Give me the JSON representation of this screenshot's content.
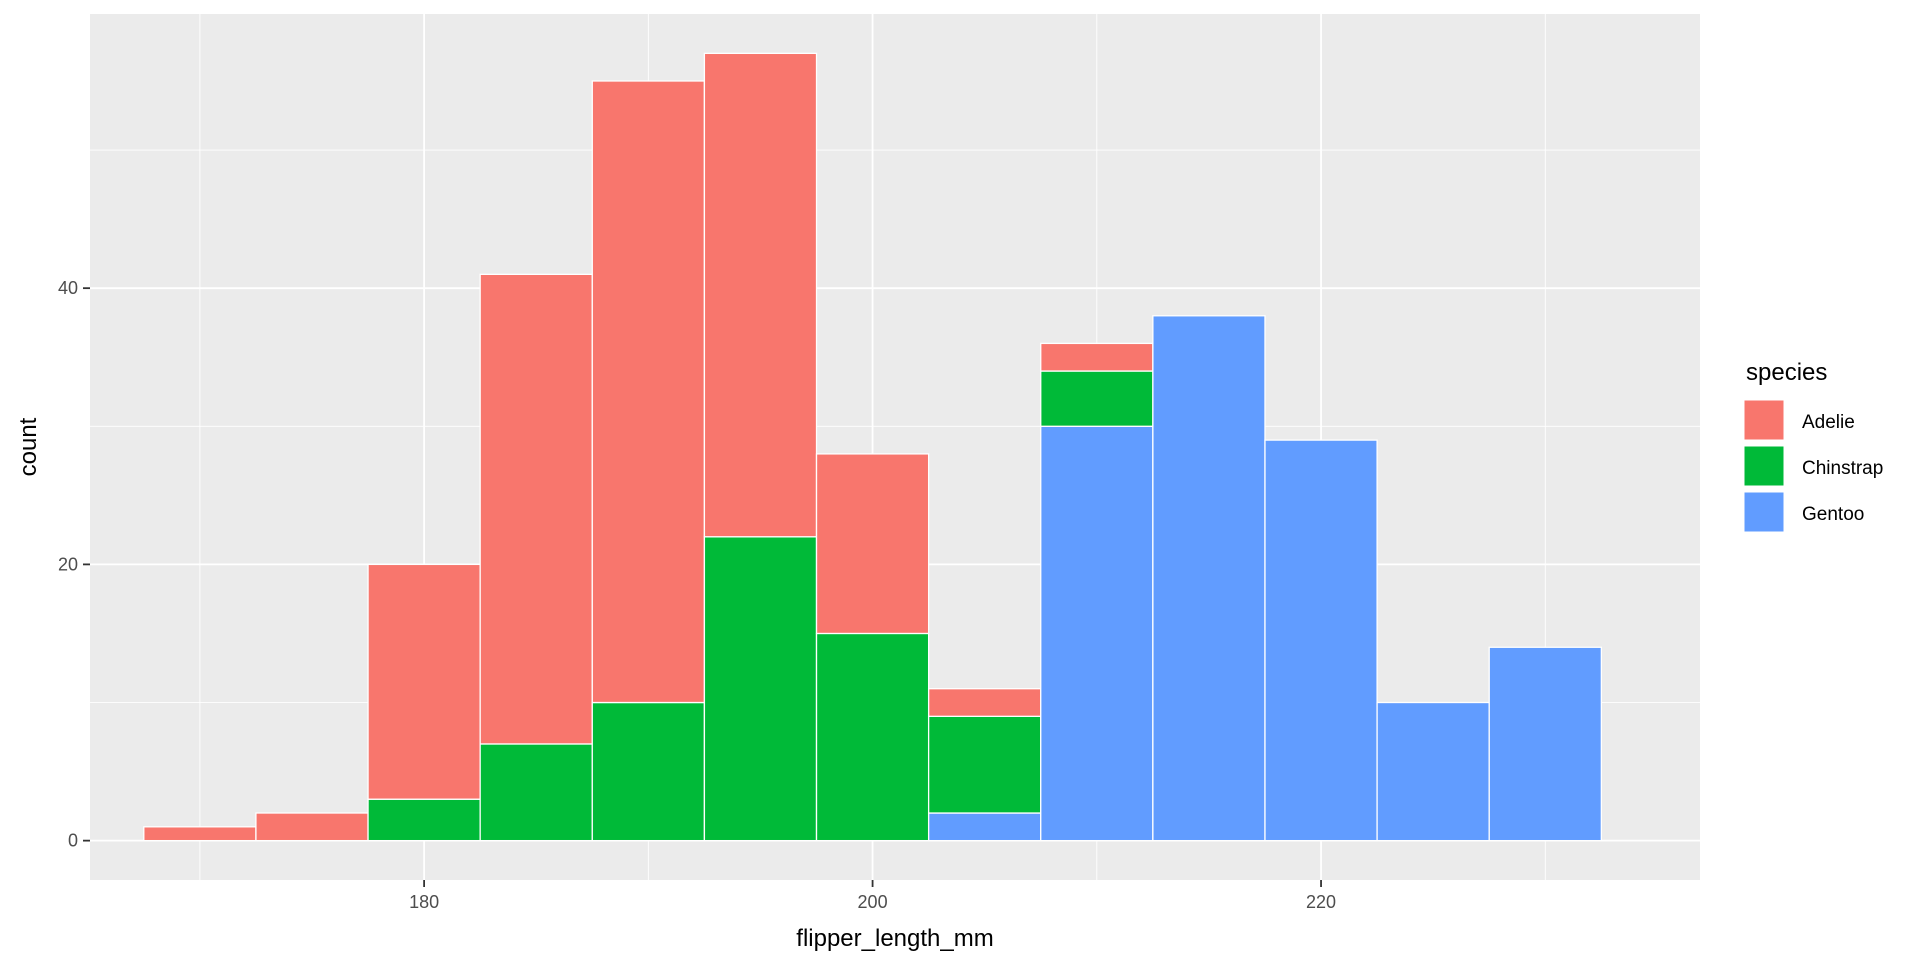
{
  "chart_data": {
    "type": "bar",
    "stacked": true,
    "histogram": true,
    "binwidth": 5,
    "x": [
      170,
      175,
      180,
      185,
      190,
      195,
      200,
      205,
      210,
      215,
      220,
      225,
      230
    ],
    "series": [
      {
        "name": "Adelie",
        "color": "#F8766D",
        "values": [
          1,
          2,
          17,
          34,
          45,
          35,
          13,
          2,
          2,
          0,
          0,
          0,
          0
        ]
      },
      {
        "name": "Chinstrap",
        "color": "#00BA38",
        "values": [
          0,
          0,
          3,
          7,
          10,
          22,
          15,
          7,
          4,
          0,
          0,
          0,
          0
        ]
      },
      {
        "name": "Gentoo",
        "color": "#619CFF",
        "values": [
          0,
          0,
          0,
          0,
          0,
          0,
          0,
          2,
          30,
          38,
          29,
          10,
          14
        ]
      }
    ],
    "xlabel": "flipper_length_mm",
    "ylabel": "count",
    "xlim": [
      165.1,
      236.9
    ],
    "ylim": [
      -2.85,
      59.85
    ],
    "xticks": [
      180,
      200,
      220
    ],
    "xticks_minor": [
      170,
      190,
      210,
      230
    ],
    "yticks": [
      0,
      20,
      40
    ],
    "yticks_minor": [
      10,
      30,
      50
    ],
    "x_tick_labels": [
      "180",
      "200",
      "220"
    ],
    "y_tick_labels": [
      "0",
      "20",
      "40"
    ],
    "grid": true,
    "panel_background": "#EBEBEB",
    "bar_outline": "#FFFFFF",
    "legend": {
      "title": "species",
      "position": "right",
      "items": [
        "Adelie",
        "Chinstrap",
        "Gentoo"
      ]
    }
  }
}
